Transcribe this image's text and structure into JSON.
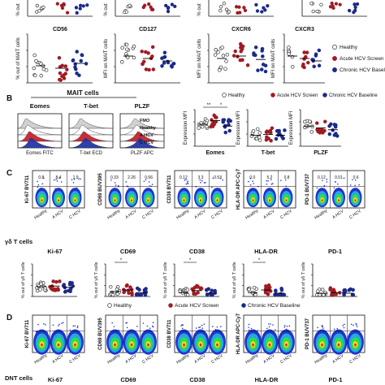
{
  "legend_series": [
    {
      "name": "Healthy",
      "color": "#ffffff",
      "stroke": "#333333"
    },
    {
      "name": "Acute HCV Screen",
      "color": "#a01c24",
      "stroke": "#a01c24"
    },
    {
      "name": "Chronic HCV Baseline",
      "color": "#1b2a8a",
      "stroke": "#1b2a8a"
    }
  ],
  "row1": {
    "panels": [
      {
        "title": "CD56",
        "ylabel": "% out of MAIT cells"
      },
      {
        "title": "CD127",
        "ylabel": "MFI on MAIT cells"
      },
      {
        "title": "CXCR6",
        "ylabel": "MFI on MAIT cells"
      },
      {
        "title": "CXCR3",
        "ylabel": "MFI on MAIT cells"
      }
    ],
    "top_ylabels": [
      "% out",
      "% out",
      "% out"
    ]
  },
  "panelB": {
    "letter": "B",
    "title": "MAIT cells",
    "histos": [
      {
        "title": "Eomes",
        "xlabel": "Eomes FITC"
      },
      {
        "title": "T-bet",
        "xlabel": "T-bet ECD"
      },
      {
        "title": "PLZF",
        "xlabel": "PLZF APC"
      }
    ],
    "histo_legend": [
      "FMO",
      "Healthy",
      "A HCV",
      "C HCV"
    ],
    "ylabel": "Expression MFI",
    "scatters": [
      {
        "xlabel": "Eomes",
        "sig": [
          "**",
          "*"
        ]
      },
      {
        "xlabel": "T-bet",
        "sig": []
      },
      {
        "xlabel": "PLZF",
        "sig": []
      }
    ]
  },
  "panelC": {
    "letter": "C",
    "flow": [
      {
        "ylabel": "Ki-67 BV711",
        "pcts": [
          "0.8",
          "8.4",
          "1.9"
        ]
      },
      {
        "ylabel": "CD69 BUV395",
        "pcts": [
          "0.33",
          "2.26",
          "0.66"
        ]
      },
      {
        "ylabel": "CD38 BV711",
        "pcts": [
          "0.12",
          "3.3",
          "0.53"
        ]
      },
      {
        "ylabel": "HLA-DR APC-Cy7",
        "pcts": [
          "0.0",
          "5.2",
          "0.8"
        ]
      },
      {
        "ylabel": "PD-1 BUV737",
        "pcts": [
          "0.12",
          "0.01",
          "0.6"
        ]
      }
    ],
    "groups": [
      "Healthy",
      "A HCV",
      "C HCV"
    ],
    "cell_label": "γδ T cells",
    "scatters": [
      {
        "title": "Ki-67",
        "ylabel": "% out of γδ T cells",
        "sig": ""
      },
      {
        "title": "CD69",
        "ylabel": "% out of γδ T cells",
        "sig": "*"
      },
      {
        "title": "CD38",
        "ylabel": "% out of γδ T cells",
        "sig": "*"
      },
      {
        "title": "HLA-DR",
        "ylabel": "% out of γδ T cells",
        "sig": "*"
      },
      {
        "title": "PD-1",
        "ylabel": "% out of γδ T cells",
        "sig": ""
      }
    ]
  },
  "panelD": {
    "letter": "D",
    "flow": [
      {
        "ylabel": "Ki-67 BV711"
      },
      {
        "ylabel": "CD69 BUV395"
      },
      {
        "ylabel": "CD38 BV711"
      },
      {
        "ylabel": "HLA-DR APC-Cy7"
      },
      {
        "ylabel": "PD-1 BUV737"
      }
    ],
    "groups": [
      "Healthy",
      "A HCV",
      "C HCV"
    ],
    "cell_label": "DNT cells",
    "titles": [
      "Ki-67",
      "CD69",
      "CD38",
      "HLA-DR",
      "PD-1"
    ]
  }
}
